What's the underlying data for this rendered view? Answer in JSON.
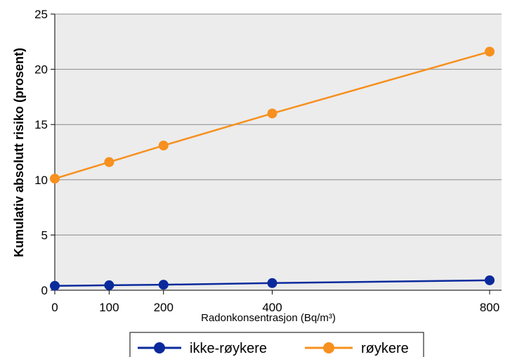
{
  "chart_data": {
    "type": "line",
    "title": "",
    "xlabel": "Radonkonsentrasjon (Bq/m³)",
    "ylabel": "Kumulativ absolutt risiko (prosent)",
    "x": [
      0,
      100,
      200,
      400,
      800
    ],
    "x_ticks": [
      "0",
      "100",
      "200",
      "400",
      "800"
    ],
    "y_ticks": [
      "0",
      "5",
      "10",
      "15",
      "20",
      "25"
    ],
    "xlim": [
      0,
      800
    ],
    "ylim": [
      0,
      25
    ],
    "grid": "horizontal",
    "legend_position": "bottom",
    "series": [
      {
        "name": "ikke-røykere",
        "color": "#0a2a9c",
        "values": [
          0.4,
          0.45,
          0.5,
          0.65,
          0.9
        ]
      },
      {
        "name": "røykere",
        "color": "#f7901e",
        "values": [
          10.1,
          11.6,
          13.1,
          16.0,
          21.6
        ]
      }
    ]
  }
}
